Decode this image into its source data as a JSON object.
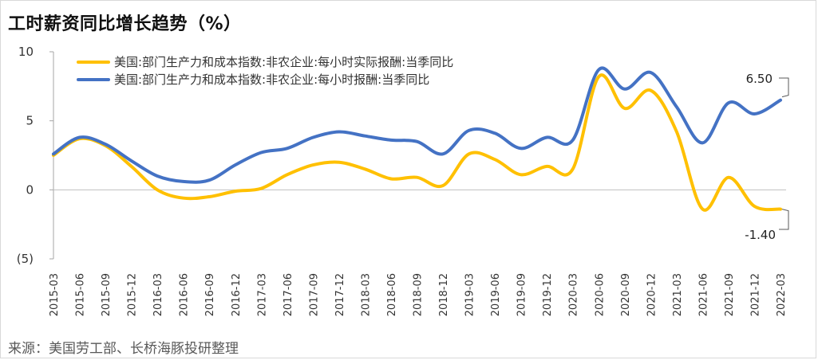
{
  "title": "工时薪资同比增长趋势（%）",
  "source": "来源：美国劳工部、长桥海豚投研整理",
  "chart_data": {
    "type": "line",
    "title": "工时薪资同比增长趋势（%）",
    "xlabel": "",
    "ylabel": "",
    "ylim": [
      -5,
      10
    ],
    "yticks": [
      10,
      5,
      0,
      -5
    ],
    "ytick_labels": [
      "10",
      "5",
      "0",
      "(5)"
    ],
    "grid": false,
    "legend": "top-left",
    "categories": [
      "2015-03",
      "2015-06",
      "2015-09",
      "2015-12",
      "2016-03",
      "2016-06",
      "2016-09",
      "2016-12",
      "2017-03",
      "2017-06",
      "2017-09",
      "2017-12",
      "2018-03",
      "2018-06",
      "2018-09",
      "2018-12",
      "2019-03",
      "2019-06",
      "2019-09",
      "2019-12",
      "2020-03",
      "2020-06",
      "2020-09",
      "2020-12",
      "2021-03",
      "2021-06",
      "2021-09",
      "2021-12",
      "2022-03"
    ],
    "series": [
      {
        "name": "美国:部门生产力和成本指数:非农企业:每小时实际报酬:当季同比",
        "color": "#FFC000",
        "values": [
          2.5,
          3.7,
          3.2,
          1.7,
          0.0,
          -0.6,
          -0.5,
          -0.1,
          0.1,
          1.1,
          1.8,
          2.0,
          1.5,
          0.8,
          0.9,
          0.3,
          2.6,
          2.2,
          1.1,
          1.7,
          1.5,
          8.2,
          5.9,
          7.2,
          4.2,
          -1.4,
          0.9,
          -1.2,
          -1.4
        ]
      },
      {
        "name": "美国:部门生产力和成本指数:非农企业:每小时报酬:当季同比",
        "color": "#4472C4",
        "values": [
          2.6,
          3.8,
          3.3,
          2.1,
          1.0,
          0.6,
          0.7,
          1.8,
          2.7,
          3.0,
          3.8,
          4.2,
          3.9,
          3.6,
          3.5,
          2.6,
          4.3,
          4.1,
          3.0,
          3.8,
          3.6,
          8.7,
          7.3,
          8.5,
          6.0,
          3.4,
          6.3,
          5.5,
          6.5
        ]
      }
    ],
    "annotations": [
      {
        "text": "6.50",
        "series": 1,
        "index": 28
      },
      {
        "text": "-1.40",
        "series": 0,
        "index": 28
      }
    ]
  }
}
